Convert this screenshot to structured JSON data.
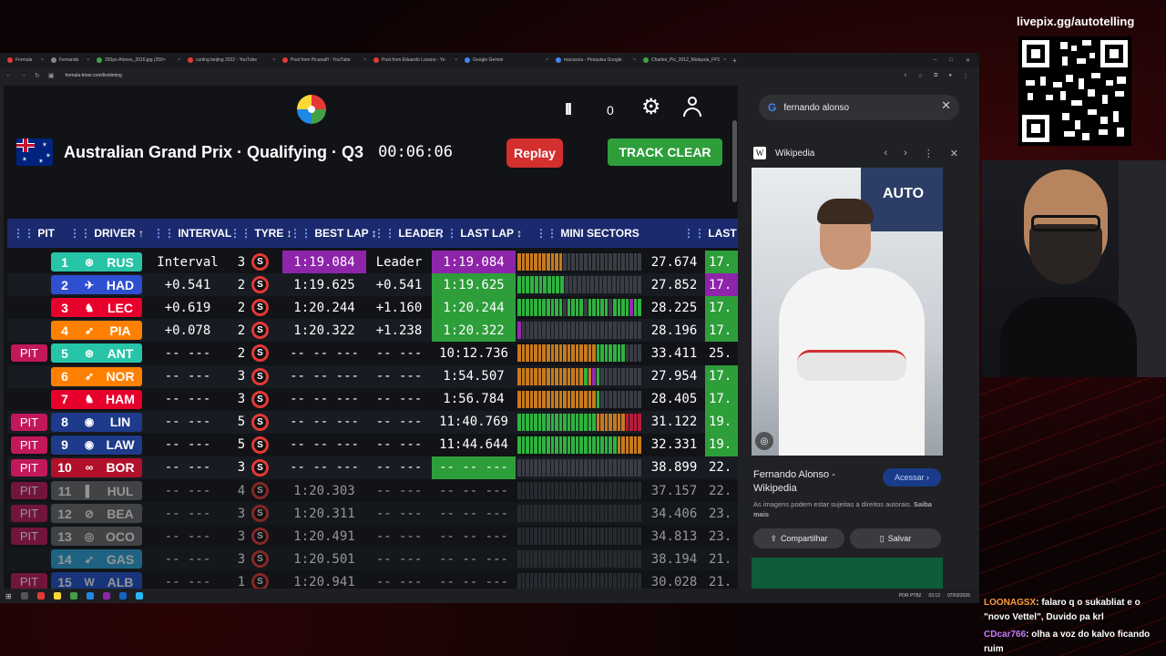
{
  "browser": {
    "tabs": [
      {
        "label": "Formula",
        "color": "#e53935"
      },
      {
        "label": "Fernando",
        "color": "#888888"
      },
      {
        "label": "250px-Alonso_2016.jpg (250×",
        "color": "#43a047"
      },
      {
        "label": "curling beijing 2022 - YouTube",
        "color": "#e53935"
      },
      {
        "label": "Post from Picanalfl - YouTube",
        "color": "#e53935"
      },
      {
        "label": "Post from Eduardo Lozano - Yo",
        "color": "#e53935"
      },
      {
        "label": "Google Gemini",
        "color": "#4285f4"
      },
      {
        "label": "macuscia - Pesquisa Google",
        "color": "#4285f4"
      },
      {
        "label": "Charles_Pic_2012_Malaysia_FP1",
        "color": "#43a047"
      }
    ],
    "new_tab": "+",
    "url": "formula-timer.com/livetiming"
  },
  "timing": {
    "pause_symbol": "II",
    "counter": "0",
    "session_title": "Australian Grand Prix · Qualifying · Q3",
    "session_clock": "00:06:06",
    "replay_label": "Replay",
    "track_status": "TRACK CLEAR",
    "headers": {
      "pit": "PIT",
      "driver": "DRIVER ↑",
      "interval": "INTERVAL",
      "tyre": "TYRE ↕",
      "best_lap": "BEST LAP ↕",
      "leader": "LEADER",
      "last_lap": "LAST LAP ↕",
      "mini_sectors": "MINI SECTORS",
      "last_s": "LAST S"
    },
    "colors": {
      "purple": "#8e24aa",
      "green": "#2e9e3a",
      "pit": "#c2185b",
      "header": "#1b2a6e"
    },
    "rows": [
      {
        "pit": "",
        "pos": "1",
        "team_logo": "⊛",
        "abbr": "RUS",
        "team_color": "#27c4a8",
        "interval": "Interval",
        "tyre_laps": "3",
        "tyre": "S",
        "best_lap": "1:19.084",
        "best_style": "purple",
        "leader": "Leader",
        "last_lap": "1:19.084",
        "last_style": "purple",
        "sectors": "oooooooooooddddddddddddddddddd",
        "last_s": "27.674",
        "last_s2": "17.",
        "s2_style": "green"
      },
      {
        "pit": "",
        "pos": "2",
        "team_logo": "✈",
        "abbr": "HAD",
        "team_color": "#2f4fd1",
        "interval": "+0.541",
        "tyre_laps": "2",
        "tyre": "S",
        "best_lap": "1:19.625",
        "best_style": "",
        "leader": "+0.541",
        "last_lap": "1:19.625",
        "last_style": "green",
        "sectors": "gggggggggggdddddddddddddddddd",
        "last_s": "27.852",
        "last_s2": "17.",
        "s2_style": "purple"
      },
      {
        "pit": "",
        "pos": "3",
        "team_logo": "♞",
        "abbr": "LEC",
        "team_color": "#e8002d",
        "interval": "+0.619",
        "tyre_laps": "2",
        "tyre": "S",
        "best_lap": "1:20.244",
        "best_style": "",
        "leader": "+1.160",
        "last_lap": "1:20.244",
        "last_style": "green",
        "sectors": "gggggggggggdggggdgggggdggggpgg",
        "last_s": "28.225",
        "last_s2": "17.",
        "s2_style": "green"
      },
      {
        "pit": "",
        "pos": "4",
        "team_logo": "➶",
        "abbr": "PIA",
        "team_color": "#ff8000",
        "interval": "+0.078",
        "tyre_laps": "2",
        "tyre": "S",
        "best_lap": "1:20.322",
        "best_style": "",
        "leader": "+1.238",
        "last_lap": "1:20.322",
        "last_style": "green",
        "sectors": "pddddddddddddddddddddddddddddd",
        "last_s": "28.196",
        "last_s2": "17.",
        "s2_style": "green"
      },
      {
        "pit": "PIT",
        "pos": "5",
        "team_logo": "⊛",
        "abbr": "ANT",
        "team_color": "#27c4a8",
        "interval": "-- ---",
        "tyre_laps": "2",
        "tyre": "S",
        "best_lap": "-- -- ---",
        "best_style": "",
        "leader": "-- ---",
        "last_lap": "10:12.736",
        "last_style": "",
        "sectors": "ooooooooooooooooooogggggggdddd",
        "last_s": "33.411",
        "last_s2": "25.",
        "s2_style": ""
      },
      {
        "pit": "",
        "pos": "6",
        "team_logo": "➶",
        "abbr": "NOR",
        "team_color": "#ff8000",
        "interval": "-- ---",
        "tyre_laps": "3",
        "tyre": "S",
        "best_lap": "-- -- ---",
        "best_style": "",
        "leader": "-- ---",
        "last_lap": "1:54.507",
        "last_style": "",
        "sectors": "oooooooooooooooogopgdddddddddd",
        "last_s": "27.954",
        "last_s2": "17.",
        "s2_style": "green"
      },
      {
        "pit": "",
        "pos": "7",
        "team_logo": "♞",
        "abbr": "HAM",
        "team_color": "#e8002d",
        "interval": "-- ---",
        "tyre_laps": "3",
        "tyre": "S",
        "best_lap": "-- -- ---",
        "best_style": "",
        "leader": "-- ---",
        "last_lap": "1:56.784",
        "last_style": "",
        "sectors": "ooooooooooooooooooogdddddddddd",
        "last_s": "28.405",
        "last_s2": "17.",
        "s2_style": "green"
      },
      {
        "pit": "PIT",
        "pos": "8",
        "team_logo": "◉",
        "abbr": "LIN",
        "team_color": "#1e3a8a",
        "interval": "-- ---",
        "tyre_laps": "5",
        "tyre": "S",
        "best_lap": "-- -- ---",
        "best_style": "",
        "leader": "-- ---",
        "last_lap": "11:40.769",
        "last_style": "",
        "sectors": "gggggggggggggggggggooooooorrrr",
        "last_s": "31.122",
        "last_s2": "19.",
        "s2_style": "green"
      },
      {
        "pit": "PIT",
        "pos": "9",
        "team_logo": "◉",
        "abbr": "LAW",
        "team_color": "#1e3a8a",
        "interval": "-- ---",
        "tyre_laps": "5",
        "tyre": "S",
        "best_lap": "-- -- ---",
        "best_style": "",
        "leader": "-- ---",
        "last_lap": "11:44.644",
        "last_style": "",
        "sectors": "ggggggggggggggggggggggggoooooo",
        "last_s": "32.331",
        "last_s2": "19.",
        "s2_style": "green"
      },
      {
        "pit": "PIT",
        "pos": "10",
        "team_logo": "∞",
        "abbr": "BOR",
        "team_color": "#b0102a",
        "interval": "-- ---",
        "tyre_laps": "3",
        "tyre": "S",
        "best_lap": "-- -- ---",
        "best_style": "",
        "leader": "-- ---",
        "last_lap": "-- -- ---",
        "last_style": "green",
        "sectors": "dddddddddddddddddddddddddddddd",
        "last_s": "38.899",
        "last_s2": "22.",
        "s2_style": ""
      },
      {
        "pit": "PIT",
        "pos": "11",
        "team_logo": "▌",
        "abbr": "HUL",
        "team_color": "#6b6b6b",
        "interval": "-- ---",
        "tyre_laps": "4",
        "tyre": "S",
        "best_lap": "1:20.303",
        "best_style": "",
        "leader": "-- ---",
        "last_lap": "-- -- ---",
        "last_style": "",
        "sectors": "dddddddddddddddddddddddddddddd",
        "last_s": "37.157",
        "last_s2": "22.",
        "s2_style": "",
        "faded": true
      },
      {
        "pit": "PIT",
        "pos": "12",
        "team_logo": "⊘",
        "abbr": "BEA",
        "team_color": "#6b6b6b",
        "interval": "-- ---",
        "tyre_laps": "3",
        "tyre": "S",
        "best_lap": "1:20.311",
        "best_style": "",
        "leader": "-- ---",
        "last_lap": "-- -- ---",
        "last_style": "",
        "sectors": "dddddddddddddddddddddddddddddd",
        "last_s": "34.406",
        "last_s2": "23.",
        "s2_style": "",
        "faded": true
      },
      {
        "pit": "PIT",
        "pos": "13",
        "team_logo": "◎",
        "abbr": "OCO",
        "team_color": "#6b6b6b",
        "interval": "-- ---",
        "tyre_laps": "3",
        "tyre": "S",
        "best_lap": "1:20.491",
        "best_style": "",
        "leader": "-- ---",
        "last_lap": "-- -- ---",
        "last_style": "",
        "sectors": "dddddddddddddddddddddddddddddd",
        "last_s": "34.813",
        "last_s2": "23.",
        "s2_style": "",
        "faded": true
      },
      {
        "pit": "",
        "pos": "14",
        "team_logo": "➹",
        "abbr": "GAS",
        "team_color": "#2aa6d9",
        "interval": "-- ---",
        "tyre_laps": "3",
        "tyre": "S",
        "best_lap": "1:20.501",
        "best_style": "",
        "leader": "-- ---",
        "last_lap": "-- -- ---",
        "last_style": "",
        "sectors": "dddddddddddddddddddddddddddddd",
        "last_s": "38.194",
        "last_s2": "21.",
        "s2_style": "",
        "faded": true
      },
      {
        "pit": "PIT",
        "pos": "15",
        "team_logo": "W",
        "abbr": "ALB",
        "team_color": "#1f4fcc",
        "interval": "-- ---",
        "tyre_laps": "1",
        "tyre": "S",
        "best_lap": "1:20.941",
        "best_style": "",
        "leader": "-- ---",
        "last_lap": "-- -- ---",
        "last_style": "",
        "sectors": "dddddddddddddddddddddddddddddd",
        "last_s": "30.028",
        "last_s2": "21.",
        "s2_style": "",
        "faded": true
      }
    ]
  },
  "side_panel": {
    "search_query": "fernando alonso",
    "source_name": "Wikipedia",
    "banner_text": "AUTO",
    "result_title": "Fernando Alonso - Wikipedia",
    "acessar_label": "Acessar",
    "notice": "As imagens podem estar sujeitas a direitos autorais.",
    "notice_link": "Saiba mais",
    "share_label": "Compartilhar",
    "save_label": "Salvar"
  },
  "taskbar": {
    "lang": "POR PTB2",
    "time": "03:13",
    "date": "07/03/2026"
  },
  "overlay": {
    "qr_label": "livepix.gg/autotelling",
    "chat": [
      {
        "user": "LOONAGSX",
        "text": ": falaro q o sukabliat e o \"novo Vettel\", Duvido pa krl"
      },
      {
        "user": "CDcar766",
        "text": ": olha a voz do kalvo ficando ruim"
      }
    ]
  }
}
